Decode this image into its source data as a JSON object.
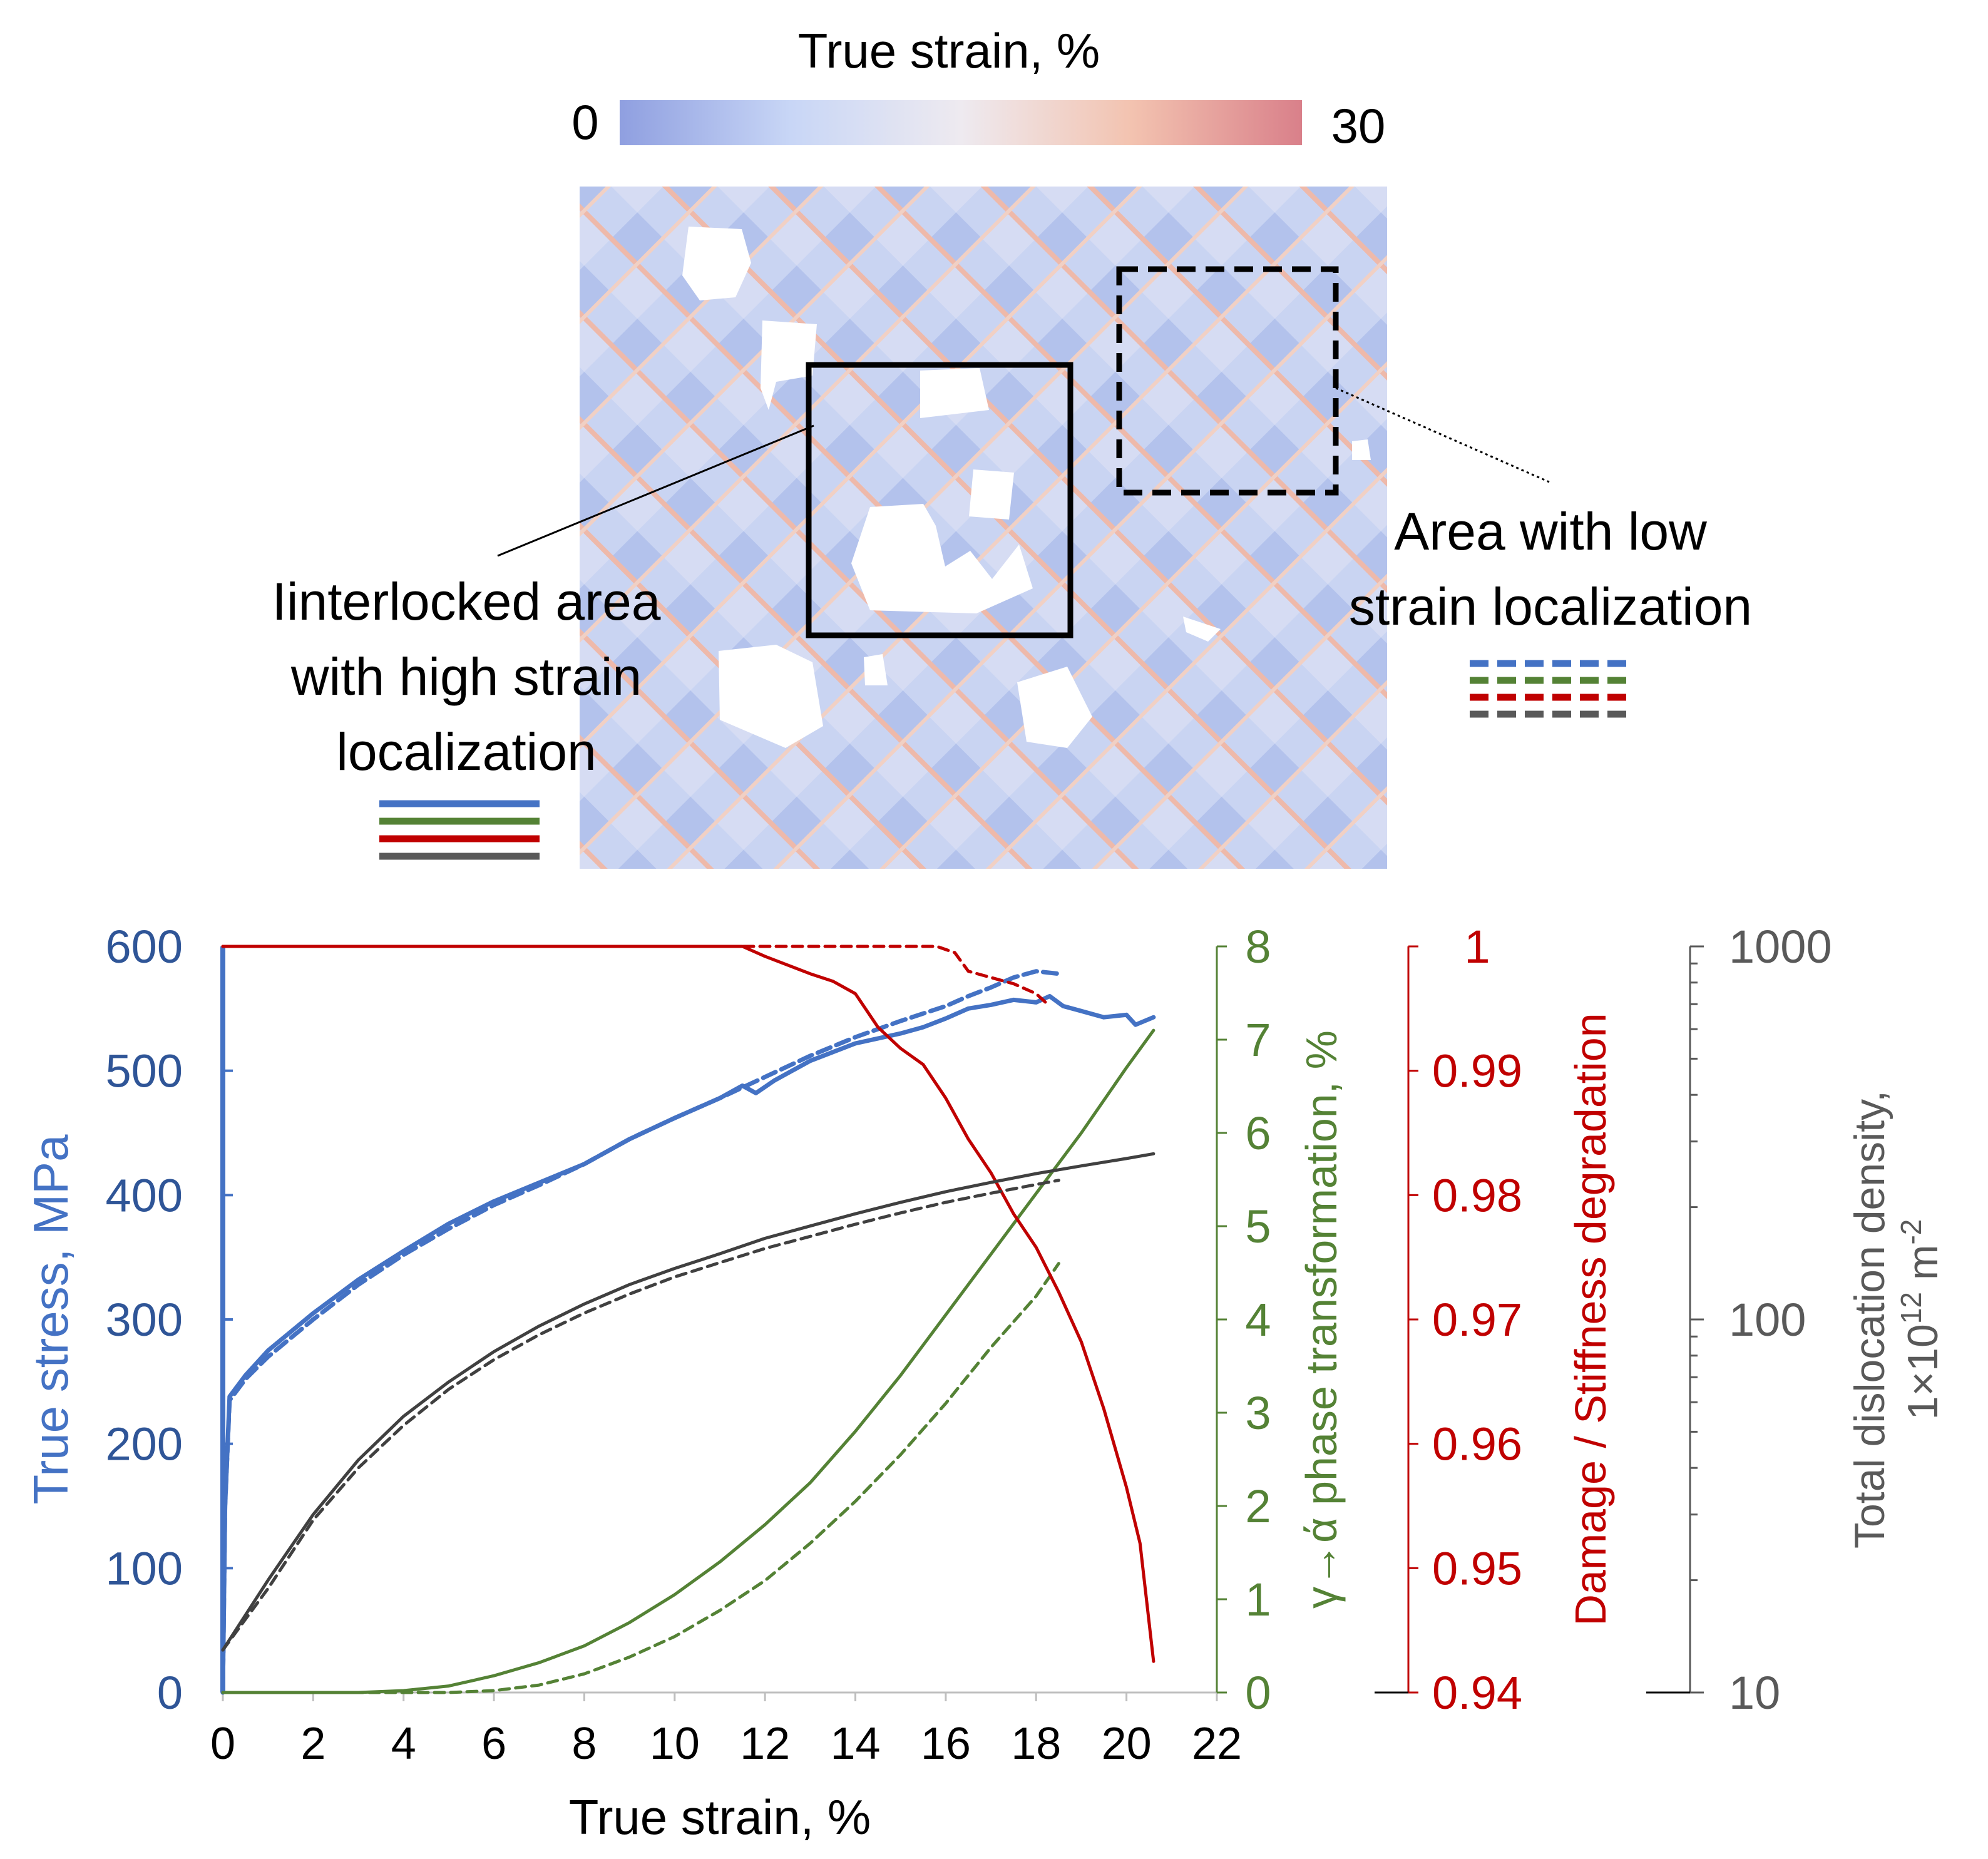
{
  "colors": {
    "stress": "#4472c4",
    "stress_axis": "#2f5597",
    "phase": "#548235",
    "damage": "#c00000",
    "dislocation": "#404040",
    "dislocation_axis": "#595959",
    "white": "#ffffff"
  },
  "colorbar": {
    "title": "True strain, %",
    "min_label": "0",
    "max_label": "30",
    "stops": [
      "#8f9fe0",
      "#c8d6f6",
      "#eeeaf0",
      "#f3c3b0",
      "#d9808a"
    ]
  },
  "strain_map": {
    "annotations": {
      "high_strain": [
        "Iinterlocked area",
        "with high strain",
        "localization"
      ],
      "low_strain": [
        "Area with low",
        "strain localization"
      ]
    },
    "legend_colors": [
      "#4472c4",
      "#548235",
      "#c00000",
      "#595959"
    ]
  },
  "chart_data": {
    "type": "line",
    "xlabel": "True strain, %",
    "xlim": [
      0,
      22
    ],
    "xticks": [
      "0",
      "2",
      "4",
      "6",
      "8",
      "10",
      "12",
      "14",
      "16",
      "18",
      "20",
      "22"
    ],
    "axes": {
      "stress": {
        "label": "True stress, MPa",
        "lim": [
          0,
          600
        ],
        "ticks": [
          "0",
          "100",
          "200",
          "300",
          "400",
          "500",
          "600"
        ]
      },
      "phase": {
        "label": "γ→ά phase transformation, %",
        "lim": [
          0,
          8
        ],
        "ticks": [
          "0",
          "1",
          "2",
          "3",
          "4",
          "5",
          "6",
          "7",
          "8"
        ]
      },
      "damage": {
        "label": "Damage / Stiffness degradation",
        "lim": [
          0.94,
          1
        ],
        "ticks": [
          "0.94",
          "0.95",
          "0.96",
          "0.97",
          "0.98",
          "0.99",
          "1"
        ]
      },
      "dislocation": {
        "label_line1": "Total dislocation density,",
        "label_line2": "1×10",
        "label_sup": "12",
        "label_unit": " m",
        "label_unit_sup": "-2",
        "scale": "log",
        "lim": [
          10,
          1000
        ],
        "ticks": [
          "10",
          "100",
          "1000"
        ]
      }
    },
    "series": [
      {
        "name": "stress-interlocked",
        "axis": "stress",
        "style": "solid",
        "x": [
          0,
          0.05,
          0.15,
          0.5,
          1,
          2,
          3,
          4,
          5,
          6,
          7,
          8,
          9,
          10,
          11,
          11.5,
          11.8,
          12.2,
          13,
          14,
          15,
          15.5,
          16,
          16.5,
          17,
          17.5,
          18,
          18.3,
          18.6,
          19,
          19.5,
          20,
          20.2,
          20.4,
          20.6
        ],
        "y": [
          0,
          150,
          238,
          255,
          275,
          305,
          332,
          355,
          377,
          395,
          410,
          425,
          445,
          462,
          478,
          488,
          482,
          492,
          508,
          522,
          530,
          535,
          542,
          550,
          553,
          557,
          555,
          560,
          552,
          548,
          543,
          545,
          537,
          540,
          543
        ]
      },
      {
        "name": "stress-low",
        "axis": "stress",
        "style": "dashed",
        "x": [
          0,
          0.05,
          0.15,
          0.5,
          1,
          2,
          3,
          4,
          5,
          6,
          7,
          8,
          9,
          10,
          11,
          12,
          13,
          14,
          15,
          16,
          16.5,
          17,
          17.5,
          18,
          18.5
        ],
        "y": [
          0,
          150,
          235,
          252,
          270,
          300,
          328,
          352,
          373,
          392,
          408,
          425,
          445,
          462,
          478,
          495,
          512,
          527,
          540,
          552,
          560,
          567,
          575,
          580,
          578
        ]
      },
      {
        "name": "phase-interlocked",
        "axis": "phase",
        "style": "solid",
        "x": [
          0,
          3,
          4,
          5,
          6,
          7,
          8,
          9,
          10,
          11,
          12,
          13,
          14,
          15,
          16,
          17,
          18,
          19,
          20,
          20.6
        ],
        "y": [
          0,
          0,
          0.02,
          0.07,
          0.18,
          0.32,
          0.5,
          0.75,
          1.05,
          1.4,
          1.8,
          2.25,
          2.8,
          3.4,
          4.05,
          4.7,
          5.35,
          6.0,
          6.7,
          7.1
        ]
      },
      {
        "name": "phase-low",
        "axis": "phase",
        "style": "dashed",
        "x": [
          0,
          5,
          6,
          7,
          8,
          9,
          10,
          11,
          12,
          13,
          14,
          15,
          16,
          17,
          18,
          18.5
        ],
        "y": [
          0,
          0,
          0.02,
          0.08,
          0.2,
          0.38,
          0.6,
          0.88,
          1.2,
          1.6,
          2.05,
          2.55,
          3.1,
          3.7,
          4.25,
          4.6
        ]
      },
      {
        "name": "damage-interlocked",
        "axis": "damage",
        "style": "solid",
        "x": [
          0,
          11.5,
          12,
          12.5,
          13,
          13.5,
          14,
          14.5,
          15,
          15.5,
          16,
          16.5,
          17,
          17.5,
          18,
          18.5,
          19,
          19.5,
          20,
          20.3,
          20.6
        ],
        "y": [
          1.0,
          1.0,
          0.9992,
          0.9985,
          0.9978,
          0.9972,
          0.9962,
          0.9935,
          0.9918,
          0.9905,
          0.9878,
          0.9845,
          0.9818,
          0.9785,
          0.9758,
          0.9722,
          0.9682,
          0.9628,
          0.9565,
          0.952,
          0.9425
        ]
      },
      {
        "name": "damage-low",
        "axis": "damage",
        "style": "dashed",
        "x": [
          0,
          15.8,
          16.2,
          16.5,
          17,
          17.5,
          18,
          18.3
        ],
        "y": [
          1.0,
          1.0,
          0.9995,
          0.998,
          0.9975,
          0.997,
          0.9962,
          0.9952
        ]
      },
      {
        "name": "dislocation-interlocked",
        "axis": "dislocation",
        "style": "solid",
        "x": [
          0,
          1,
          2,
          3,
          4,
          5,
          6,
          7,
          8,
          9,
          10,
          11,
          12,
          13,
          14,
          15,
          16,
          17,
          18,
          19,
          20,
          20.6
        ],
        "y": [
          13,
          20,
          30,
          42,
          55,
          68,
          82,
          96,
          110,
          124,
          137,
          150,
          165,
          178,
          192,
          206,
          220,
          233,
          246,
          258,
          270,
          278
        ]
      },
      {
        "name": "dislocation-low",
        "axis": "dislocation",
        "style": "dashed",
        "x": [
          0,
          1,
          2,
          3,
          4,
          5,
          6,
          7,
          8,
          9,
          10,
          11,
          12,
          13,
          14,
          15,
          16,
          17,
          18,
          18.5
        ],
        "y": [
          13,
          19,
          29,
          40,
          52,
          65,
          78,
          91,
          104,
          117,
          130,
          142,
          155,
          167,
          180,
          193,
          206,
          218,
          230,
          236
        ]
      }
    ]
  }
}
